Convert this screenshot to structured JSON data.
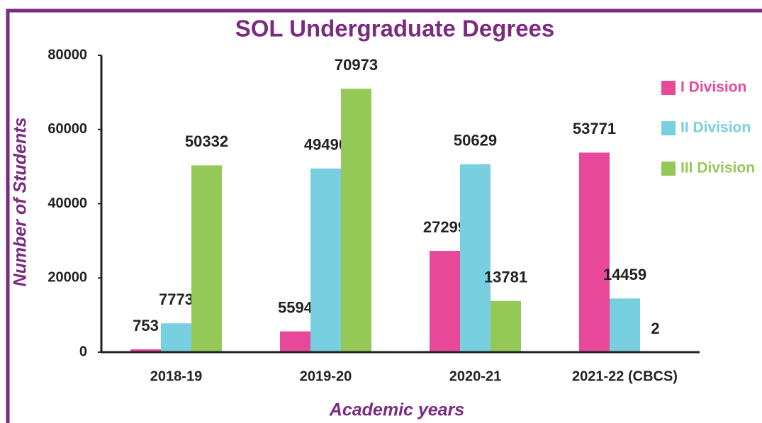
{
  "chart_data": {
    "type": "bar",
    "title": "SOL Undergraduate Degrees",
    "xlabel": "Academic years",
    "ylabel": "Number of Students",
    "categories": [
      "2018-19",
      "2019-20",
      "2020-21",
      "2021-22 (CBCS)"
    ],
    "series": [
      {
        "name": "I Division",
        "color": "#e8489a",
        "values": [
          753,
          5594,
          27299,
          53771
        ]
      },
      {
        "name": "II Division",
        "color": "#78cfe0",
        "values": [
          7773,
          49490,
          50629,
          14459
        ]
      },
      {
        "name": "III Division",
        "color": "#95c957",
        "values": [
          50332,
          70973,
          13781,
          2
        ]
      }
    ],
    "ylim": [
      0,
      80000
    ],
    "yticks": [
      0,
      20000,
      40000,
      60000,
      80000
    ],
    "legend": "right",
    "grid": false
  }
}
